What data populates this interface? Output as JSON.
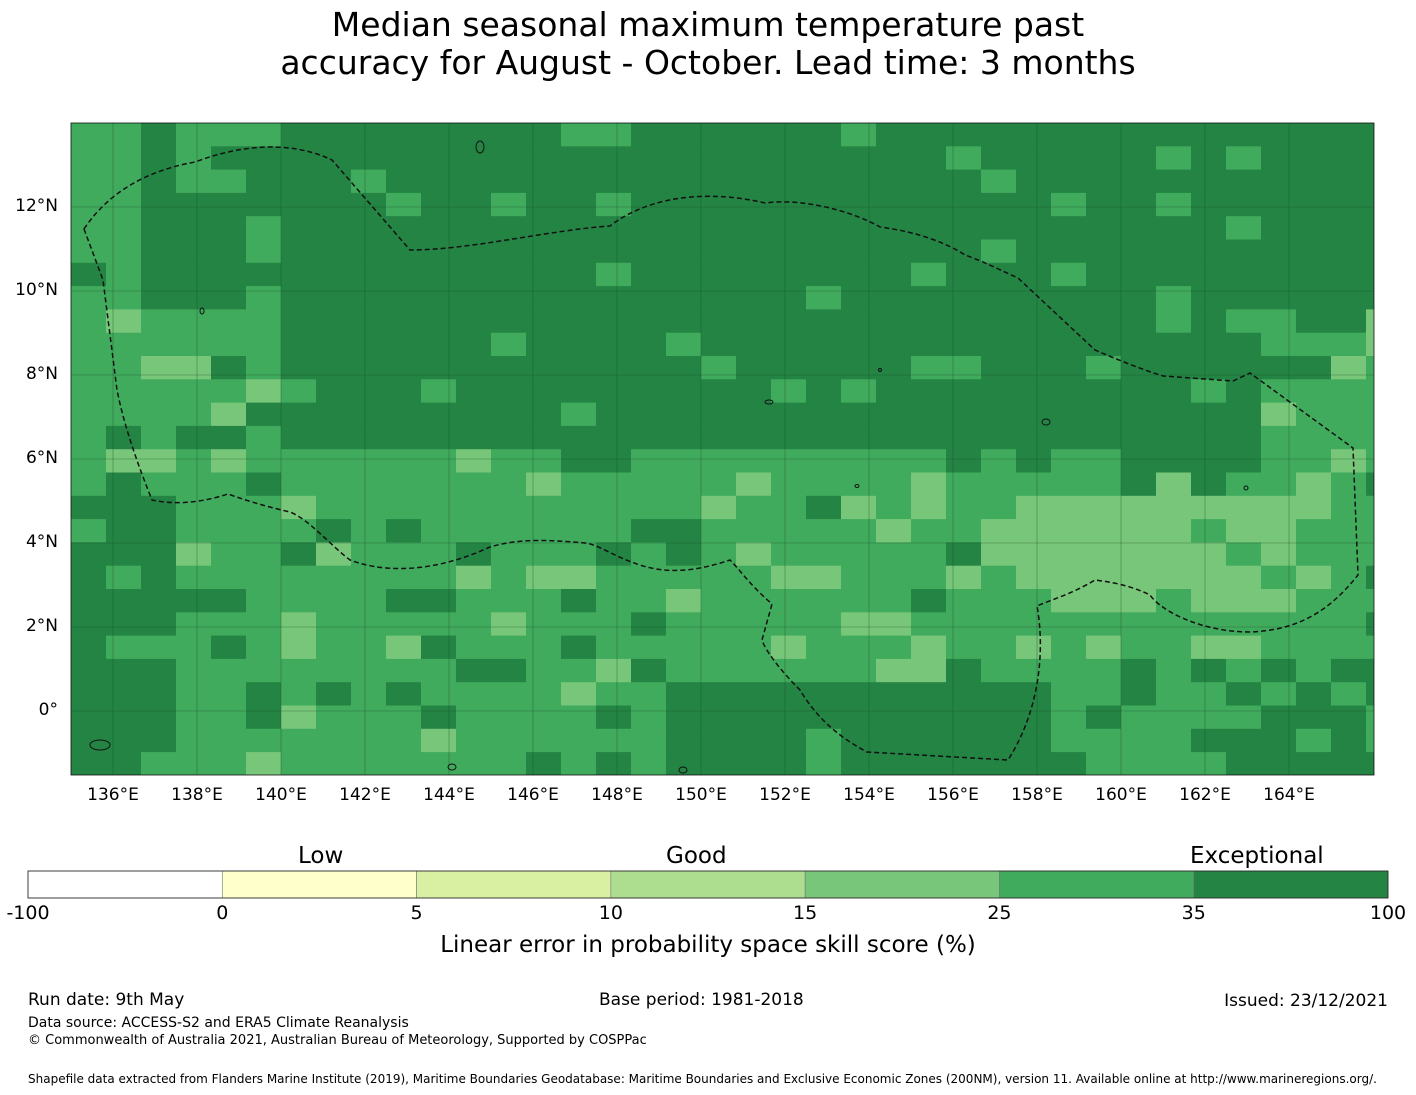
{
  "title": {
    "line1": "Median seasonal maximum temperature past",
    "line2": "accuracy for August - October. Lead time: 3 months"
  },
  "map": {
    "lat_labels": [
      "12°N",
      "10°N",
      "8°N",
      "6°N",
      "4°N",
      "2°N",
      "0°"
    ],
    "lon_labels": [
      "136°E",
      "138°E",
      "140°E",
      "142°E",
      "144°E",
      "146°E",
      "148°E",
      "150°E",
      "152°E",
      "154°E",
      "156°E",
      "158°E",
      "160°E",
      "162°E",
      "164°E"
    ],
    "boundary_style": "dashed",
    "boundary_color": "#111111",
    "grid_color": "#1a4d2a"
  },
  "legend": {
    "category_labels": {
      "low": "Low",
      "good": "Good",
      "exceptional": "Exceptional"
    },
    "ticks": [
      "-100",
      "0",
      "5",
      "10",
      "15",
      "25",
      "35",
      "100"
    ],
    "colors": [
      "#ffffff",
      "#ffffcc",
      "#d9f0a3",
      "#addd8e",
      "#78c679",
      "#41ab5d",
      "#238443"
    ],
    "label": "Linear error in probability space skill score (%)"
  },
  "footer": {
    "run_date": "Run date: 9th May",
    "base_period": "Base period: 1981-2018",
    "issued": "Issued: 23/12/2021",
    "data_source": "Data source: ACCESS-S2 and ERA5 Climate Reanalysis",
    "copyright": "© Commonwealth of Australia 2021, Australian Bureau of Meteorology, Supported by COSPPac",
    "shapefile": "Shapefile data extracted from Flanders Marine Institute (2019), Maritime Boundaries Geodatabase: Maritime Boundaries and Exclusive Economic Zones (200NM), version 11. Available online at http://www.marineregions.org/."
  }
}
